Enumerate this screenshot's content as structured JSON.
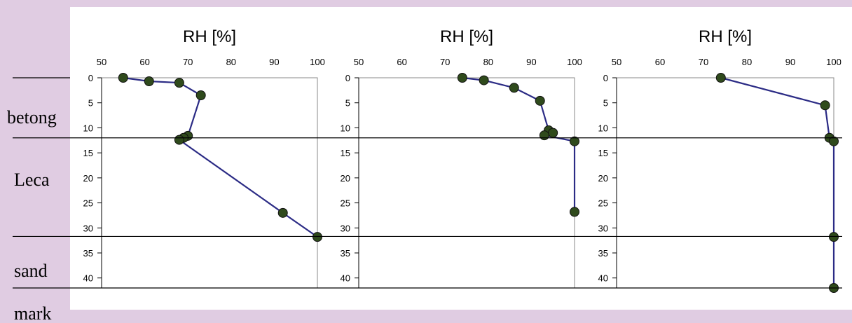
{
  "colors": {
    "page_background": "#e0cce2",
    "chart_background": "#ffffff",
    "curve": "#2b2b85",
    "marker_fill": "#2f4a1c",
    "frame": "#888888",
    "boundary_lines": "#000000"
  },
  "layers": [
    {
      "label": "betong",
      "depth_top": 0,
      "depth_bottom": 12
    },
    {
      "label": "Leca",
      "depth_top": 12,
      "depth_bottom": 31.7
    },
    {
      "label": "sand",
      "depth_top": 31.7,
      "depth_bottom": 42
    },
    {
      "label": "mark",
      "depth_top": 42,
      "depth_bottom": null
    }
  ],
  "chart_data": [
    {
      "type": "line",
      "title": "RH [%]",
      "xlabel": "",
      "ylabel": "",
      "x_axis_position": "top",
      "y_inverted": true,
      "xlim": [
        50,
        100
      ],
      "ylim": [
        0,
        42
      ],
      "x_ticks": [
        50,
        60,
        70,
        80,
        90,
        100
      ],
      "y_ticks": [
        0,
        5,
        10,
        15,
        20,
        25,
        30,
        35,
        40
      ],
      "grid": false,
      "points": [
        {
          "rh": 55,
          "depth": 0
        },
        {
          "rh": 61,
          "depth": 0.7
        },
        {
          "rh": 68,
          "depth": 1
        },
        {
          "rh": 73,
          "depth": 3.5
        },
        {
          "rh": 70,
          "depth": 11.6
        },
        {
          "rh": 69,
          "depth": 12
        },
        {
          "rh": 68,
          "depth": 12.4
        },
        {
          "rh": 92,
          "depth": 27
        },
        {
          "rh": 100,
          "depth": 31.8
        }
      ]
    },
    {
      "type": "line",
      "title": "RH [%]",
      "xlabel": "",
      "ylabel": "",
      "x_axis_position": "top",
      "y_inverted": true,
      "xlim": [
        50,
        100
      ],
      "ylim": [
        0,
        42
      ],
      "x_ticks": [
        50,
        60,
        70,
        80,
        90,
        100
      ],
      "y_ticks": [
        0,
        5,
        10,
        15,
        20,
        25,
        30,
        35,
        40
      ],
      "grid": false,
      "points": [
        {
          "rh": 74,
          "depth": 0
        },
        {
          "rh": 79,
          "depth": 0.5
        },
        {
          "rh": 86,
          "depth": 2
        },
        {
          "rh": 92,
          "depth": 4.6
        },
        {
          "rh": 94,
          "depth": 10.5
        },
        {
          "rh": 95,
          "depth": 11
        },
        {
          "rh": 93,
          "depth": 11.5
        },
        {
          "rh": 100,
          "depth": 12.7
        },
        {
          "rh": 100,
          "depth": 26.8
        }
      ]
    },
    {
      "type": "line",
      "title": "RH [%]",
      "xlabel": "",
      "ylabel": "",
      "x_axis_position": "top",
      "y_inverted": true,
      "xlim": [
        50,
        100
      ],
      "ylim": [
        0,
        42
      ],
      "x_ticks": [
        50,
        60,
        70,
        80,
        90,
        100
      ],
      "y_ticks": [
        0,
        5,
        10,
        15,
        20,
        25,
        30,
        35,
        40
      ],
      "grid": false,
      "points": [
        {
          "rh": 74,
          "depth": 0
        },
        {
          "rh": 98,
          "depth": 5.5
        },
        {
          "rh": 99,
          "depth": 12
        },
        {
          "rh": 100,
          "depth": 12.7
        },
        {
          "rh": 100,
          "depth": 31.8
        },
        {
          "rh": 100,
          "depth": 42
        }
      ]
    }
  ]
}
